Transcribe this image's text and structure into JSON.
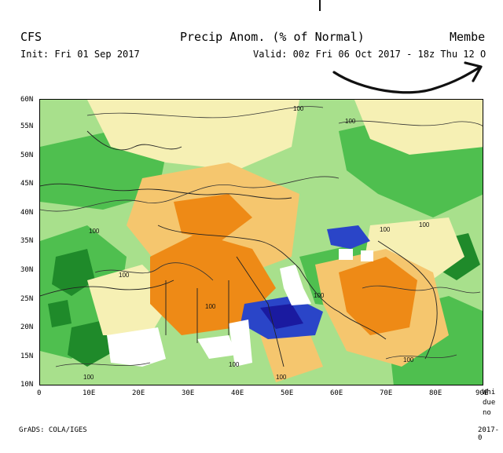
{
  "header": {
    "model": "CFS",
    "title": "Precip Anom. (% of Normal)",
    "member": "Membe",
    "init": "Init: Fri 01 Sep 2017",
    "valid": "Valid: 00z Fri 06 Oct 2017 - 18z Thu 12 O"
  },
  "axes": {
    "lat_ticks": [
      "60N",
      "55N",
      "50N",
      "45N",
      "40N",
      "35N",
      "30N",
      "25N",
      "20N",
      "15N",
      "10N"
    ],
    "lon_ticks": [
      "0",
      "10E",
      "20E",
      "30E",
      "40E",
      "50E",
      "60E",
      "70E",
      "80E",
      "90E"
    ]
  },
  "contour_labels": [
    "100",
    "100",
    "100",
    "100",
    "100",
    "100",
    "100",
    "100",
    "100",
    "100",
    "100",
    "100"
  ],
  "footer": {
    "credit": "GrADS: COLA/IGES",
    "date": "2017-0"
  },
  "side_note": [
    "Whi",
    "due",
    "no"
  ],
  "colors": {
    "dark_green": "#1f8a2a",
    "green": "#4fbf4f",
    "light_green": "#a8e08c",
    "pale_yellow": "#f6f0b4",
    "light_orange": "#f5c66e",
    "orange": "#ee8a16",
    "blue": "#2a45c8",
    "dark_blue": "#1a1aa0",
    "annotation": "#111111"
  }
}
